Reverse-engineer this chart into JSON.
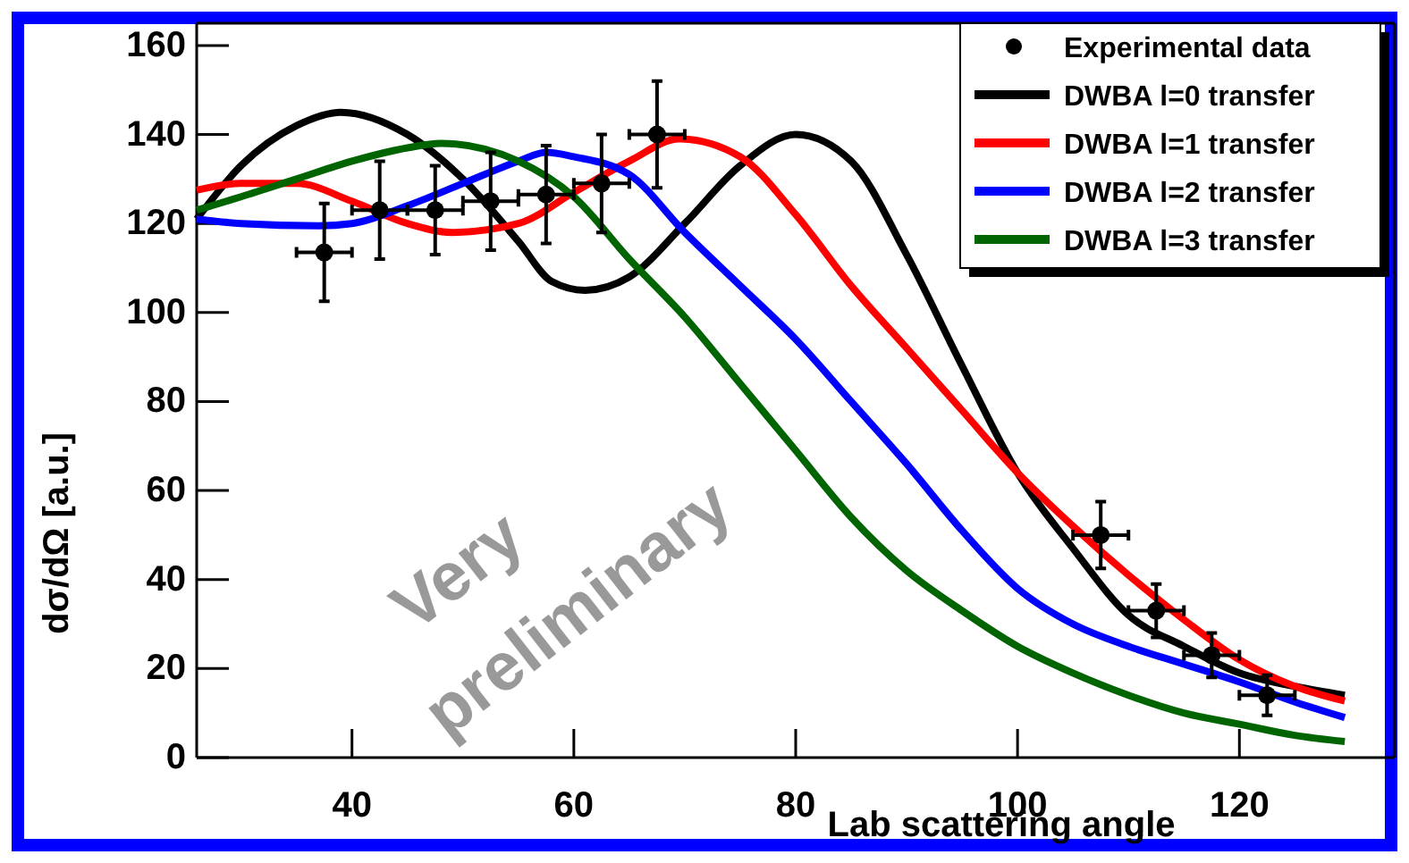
{
  "chart_data": {
    "type": "line",
    "xlabel": "Lab scattering angle",
    "ylabel": "dσ/dΩ [a.u.]",
    "xlim": [
      26,
      134
    ],
    "ylim": [
      0,
      165
    ],
    "xticks": [
      40,
      60,
      80,
      100,
      120
    ],
    "yticks": [
      0,
      20,
      40,
      60,
      80,
      100,
      120,
      140,
      160
    ],
    "legend": "top right",
    "grid": false,
    "series": [
      {
        "name": "Experimental data",
        "type": "scatter",
        "marker": "circle",
        "color": "#000000",
        "x": [
          37.5,
          42.5,
          47.5,
          52.5,
          57.5,
          62.5,
          67.5,
          107.5,
          112.5,
          117.5,
          122.5
        ],
        "values": [
          113.5,
          123,
          123,
          125,
          126.5,
          129,
          140,
          50,
          33,
          23,
          14
        ],
        "errors": [
          11,
          11,
          10,
          11,
          11,
          11,
          12,
          7.5,
          6,
          5,
          4.5
        ],
        "xerrors": [
          2.5,
          2.5,
          2.5,
          2.5,
          2.5,
          2.5,
          2.5,
          2.5,
          2.5,
          2.5,
          2.5
        ]
      },
      {
        "name": "DWBA l=0 transfer",
        "marker": "none",
        "color": "#000000",
        "x": [
          26,
          30,
          35,
          39,
          45,
          50,
          55,
          58,
          61,
          65,
          70,
          75,
          80,
          85,
          90,
          95,
          100,
          105,
          110,
          115,
          120,
          125,
          129.5
        ],
        "values": [
          121,
          133,
          142,
          145,
          140,
          130,
          116,
          107,
          105,
          108,
          120,
          133,
          140,
          134,
          113,
          88,
          64,
          47,
          32,
          25,
          19,
          16,
          14
        ]
      },
      {
        "name": "DWBA l=1 transfer",
        "marker": "none",
        "color": "#ff0000",
        "x": [
          26,
          30,
          35,
          40,
          45,
          49,
          55,
          60,
          65,
          69.5,
          75,
          80,
          85,
          90,
          95,
          100,
          105,
          110,
          115,
          120,
          125,
          129.5
        ],
        "values": [
          127.5,
          129,
          129,
          125,
          120,
          118,
          120,
          127,
          134,
          139,
          135,
          122,
          106,
          92,
          78,
          64,
          52,
          41,
          31,
          22,
          16,
          12.7
        ]
      },
      {
        "name": "DWBA l=2 transfer",
        "marker": "none",
        "color": "#0000ff",
        "x": [
          26,
          30,
          37,
          40,
          45,
          50,
          55,
          57.5,
          60,
          65,
          70,
          75,
          80,
          85,
          90,
          95,
          100,
          105,
          110,
          115,
          120,
          125,
          129.5
        ],
        "values": [
          121,
          120,
          119.5,
          120,
          124,
          129,
          134,
          136,
          135,
          131,
          118,
          106,
          94,
          80,
          66,
          51,
          38,
          30,
          25,
          21,
          17,
          12.5,
          9
        ]
      },
      {
        "name": "DWBA l=3 transfer",
        "marker": "none",
        "color": "#006400",
        "x": [
          26,
          30,
          35,
          40,
          45,
          48,
          55,
          60,
          65,
          70,
          75,
          80,
          85,
          90,
          95,
          100,
          105,
          110,
          115,
          120,
          125,
          129.5
        ],
        "values": [
          123,
          126,
          130,
          134,
          137,
          138,
          134,
          126,
          112,
          99,
          84,
          69,
          54,
          42,
          33,
          25,
          19,
          14,
          10,
          7.5,
          5,
          3.6
        ]
      }
    ],
    "annotations": [
      "Very preliminary"
    ]
  }
}
